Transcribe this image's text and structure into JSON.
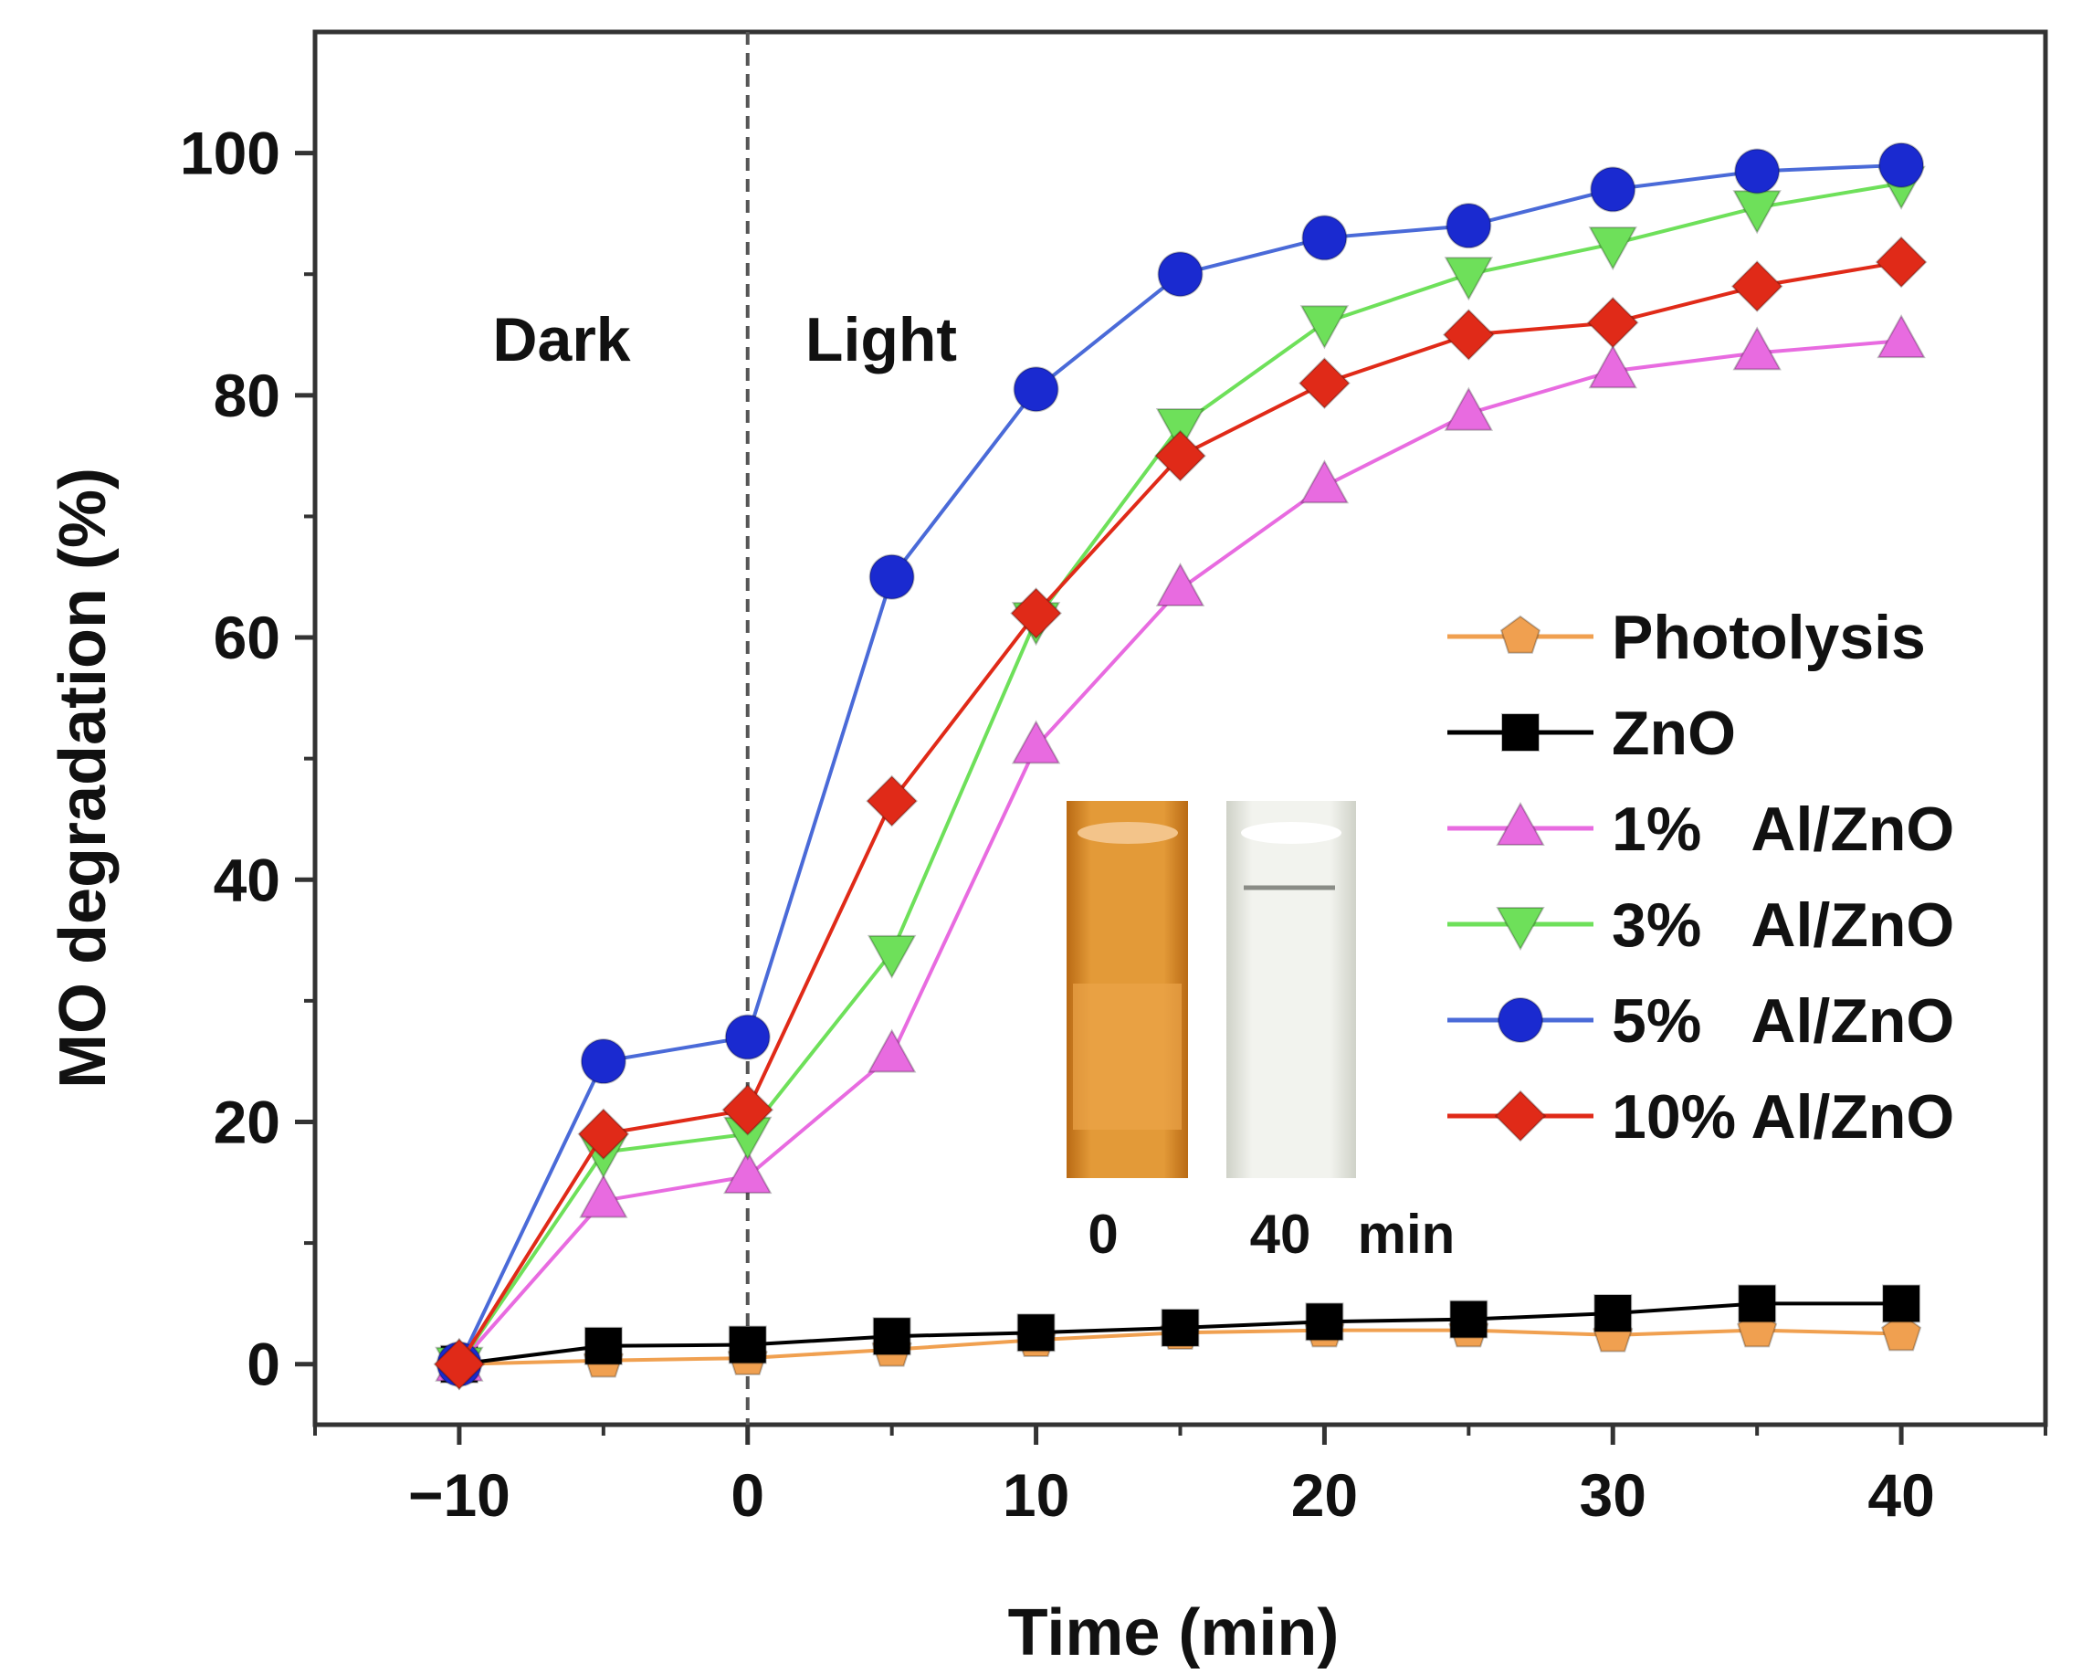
{
  "chart_data": {
    "type": "line",
    "title": "",
    "xlabel": "Time (min)",
    "ylabel": "MO degradation (%)",
    "xlim": [
      -15,
      45
    ],
    "ylim": [
      -5,
      110
    ],
    "x": [
      -10,
      -5,
      0,
      5,
      10,
      15,
      20,
      25,
      30,
      35,
      40
    ],
    "xticks": [
      -10,
      0,
      10,
      20,
      30,
      40
    ],
    "xtick_labels": [
      "−10",
      "0",
      "10",
      "20",
      "30",
      "40"
    ],
    "yticks": [
      0,
      20,
      40,
      60,
      80,
      100
    ],
    "ytick_labels": [
      "0",
      "20",
      "40",
      "60",
      "80",
      "100"
    ],
    "grid": false,
    "legend_position": "center-right",
    "series": [
      {
        "name": "Photolysis",
        "color": "#f0a050",
        "marker": "pentagon",
        "values": [
          0,
          0.3,
          0.5,
          1.2,
          2.0,
          2.6,
          2.8,
          2.8,
          2.4,
          2.8,
          2.5
        ]
      },
      {
        "name": "ZnO",
        "color": "#000000",
        "marker": "square",
        "values": [
          0,
          1.5,
          1.6,
          2.3,
          2.6,
          3.0,
          3.5,
          3.7,
          4.2,
          5.0,
          5.0
        ]
      },
      {
        "name": "1%   Al/ZnO",
        "color": "#e86be0",
        "marker": "triangle-up",
        "values": [
          0,
          13.5,
          15.5,
          25.5,
          51.0,
          64.0,
          72.5,
          78.5,
          82.0,
          83.5,
          84.5
        ]
      },
      {
        "name": "3%   Al/ZnO",
        "color": "#6ee05a",
        "marker": "triangle-down",
        "values": [
          0,
          17.5,
          19.0,
          34.0,
          61.5,
          77.5,
          86.0,
          90.0,
          92.5,
          95.5,
          97.5
        ]
      },
      {
        "name": "5%   Al/ZnO",
        "color": "#1a2ad0",
        "line_color": "#4a6ad8",
        "marker": "circle",
        "values": [
          0,
          25.0,
          27.0,
          65.0,
          80.5,
          90.0,
          93.0,
          94.0,
          97.0,
          98.5,
          99.0
        ]
      },
      {
        "name": "10% Al/ZnO",
        "color": "#e02a18",
        "marker": "diamond",
        "values": [
          0,
          19.0,
          21.0,
          46.5,
          62.0,
          75.0,
          81.0,
          85.0,
          86.0,
          89.0,
          91.0
        ]
      }
    ],
    "annotations": {
      "divider_x": 0,
      "dark_label": "Dark",
      "light_label": "Light"
    },
    "inset": {
      "times": [
        "0",
        "40"
      ],
      "unit": "min",
      "before_color": "#d98a26",
      "after_color": "#eceee6"
    }
  }
}
